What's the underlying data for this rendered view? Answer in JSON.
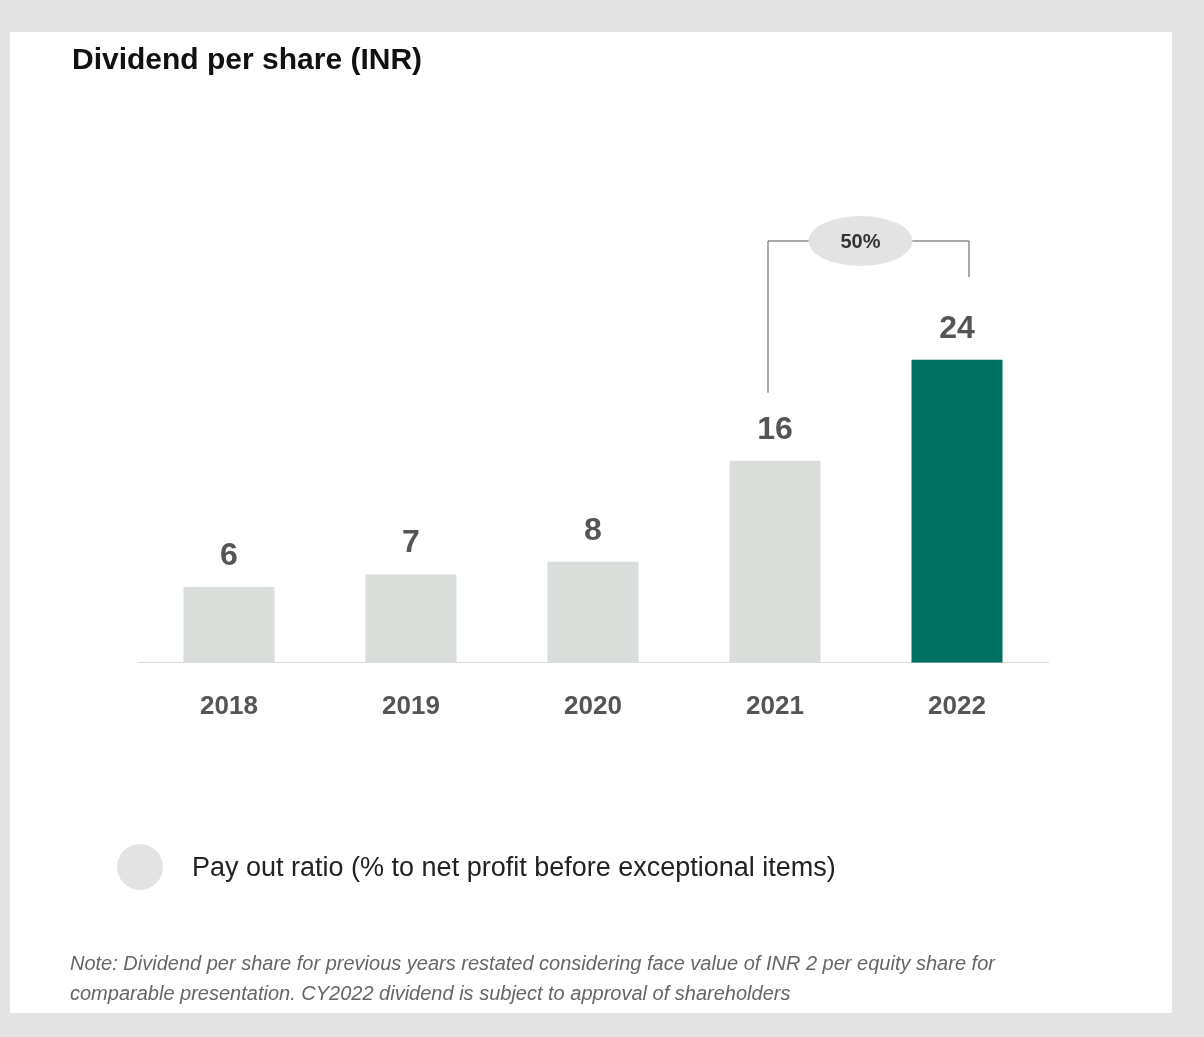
{
  "chart_data": {
    "type": "bar",
    "title": "Dividend per share (INR)",
    "categories": [
      "2018",
      "2019",
      "2020",
      "2021",
      "2022"
    ],
    "values": [
      6,
      7,
      8,
      16,
      24
    ],
    "colors": [
      "#d9dedb",
      "#d9dedb",
      "#d9dedb",
      "#d9dedb",
      "#007060"
    ],
    "data_labels": true,
    "tick_labels": "x",
    "grid": false,
    "legend": false,
    "annotations": [
      "50%",
      "Pay out ratio (% to net profit before exceptional items)",
      "Note: Dividend per share for previous years restated considering face value of INR 2 per equity share for comparable presentation. CY2022 dividend is subject to approval of shareholders"
    ]
  }
}
